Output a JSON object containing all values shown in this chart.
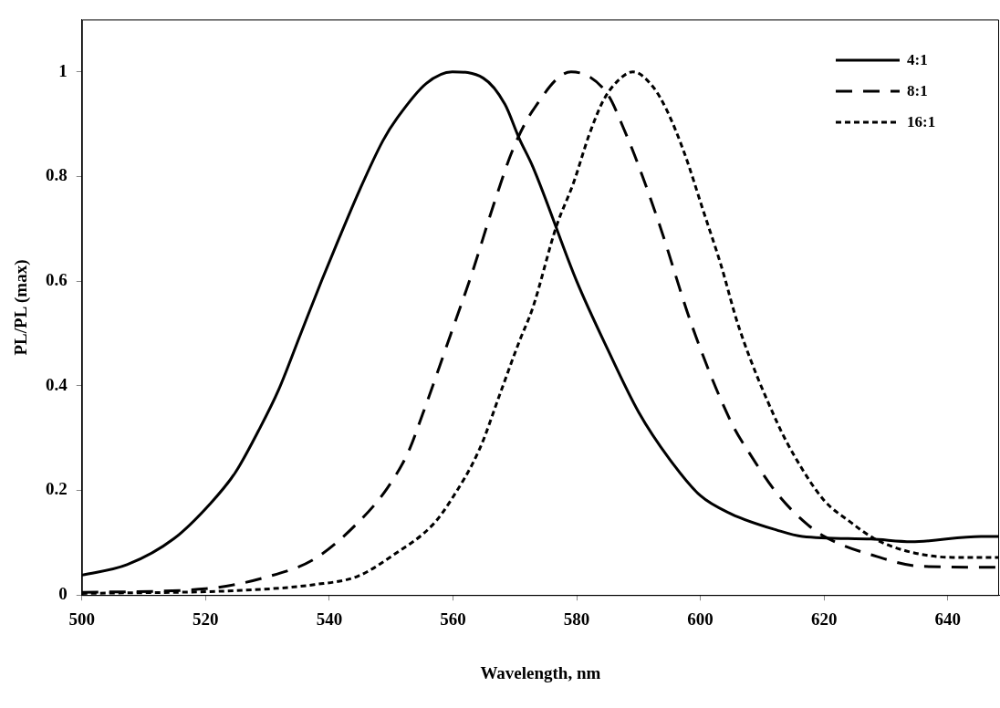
{
  "chart_data": {
    "type": "line",
    "xlabel": "Wavelength, nm",
    "ylabel": "PL/PL (max)",
    "xlim": [
      500,
      648.3
    ],
    "xticks": [
      500,
      520,
      540,
      560,
      580,
      600,
      620,
      640
    ],
    "ylim": [
      0,
      1.1
    ],
    "yticks": [
      0,
      0.2,
      0.4,
      0.6,
      0.8,
      1
    ],
    "grid": false,
    "legend": "top right",
    "marker": "none",
    "series": [
      {
        "name": "4:1",
        "color": "#000000",
        "line_style": "solid",
        "x": [
          500,
          507.3,
          514.9,
          520.7,
          524.8,
          528.6,
          531.8,
          535.3,
          538.8,
          541.1,
          544.9,
          548.7,
          551,
          555.7,
          559.9,
          564.9,
          568.4,
          570.7,
          572.9,
          580,
          585,
          590,
          595,
          600,
          605,
          612.4,
          616.5,
          627.6,
          634.1,
          645.4,
          648.3
        ],
        "values": [
          0.038,
          0.058,
          0.108,
          0.174,
          0.234,
          0.315,
          0.392,
          0.497,
          0.602,
          0.668,
          0.774,
          0.869,
          0.912,
          0.978,
          1,
          0.988,
          0.938,
          0.873,
          0.819,
          0.6,
          0.47,
          0.35,
          0.26,
          0.19,
          0.155,
          0.124,
          0.112,
          0.107,
          0.102,
          0.112,
          0.112
        ]
      },
      {
        "name": "8:1",
        "color": "#000000",
        "line_style": "dashed",
        "x": [
          500,
          520,
          529.4,
          537.6,
          544.6,
          549.3,
          552.8,
          555.1,
          559.6,
          563.1,
          566.6,
          569.7,
          572.9,
          579.1,
          584.9,
          587.8,
          590,
          593.5,
          598.7,
          605,
          608,
          612.4,
          617.4,
          620.5,
          627.6,
          635.7,
          648.3
        ],
        "values": [
          0.005,
          0.012,
          0.033,
          0.069,
          0.138,
          0.203,
          0.274,
          0.346,
          0.497,
          0.616,
          0.747,
          0.852,
          0.926,
          1,
          0.959,
          0.886,
          0.821,
          0.704,
          0.513,
          0.33,
          0.27,
          0.194,
          0.134,
          0.109,
          0.077,
          0.055,
          0.053
        ]
      },
      {
        "name": "16:1",
        "color": "#000000",
        "line_style": "dotted",
        "x": [
          500,
          525.9,
          537.6,
          544.6,
          550.3,
          556.7,
          559.6,
          564.3,
          567.8,
          570.7,
          572.9,
          576.7,
          579.5,
          582,
          584.3,
          586.5,
          589.1,
          592.3,
          594.6,
          597.5,
          600.4,
          603.3,
          606.2,
          612.4,
          615.4,
          620,
          624.1,
          628.1,
          633.7,
          640.8,
          648.3
        ],
        "values": [
          0.003,
          0.009,
          0.02,
          0.036,
          0.076,
          0.134,
          0.18,
          0.279,
          0.391,
          0.484,
          0.549,
          0.704,
          0.788,
          0.879,
          0.945,
          0.981,
          1,
          0.972,
          0.926,
          0.842,
          0.737,
          0.632,
          0.513,
          0.33,
          0.262,
          0.181,
          0.141,
          0.108,
          0.083,
          0.072,
          0.072
        ]
      }
    ]
  }
}
